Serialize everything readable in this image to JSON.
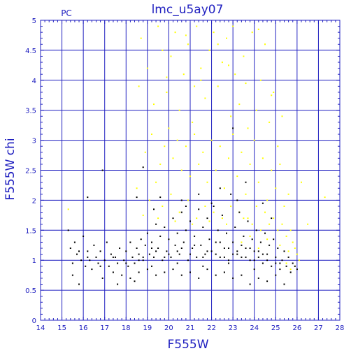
{
  "chart_data": {
    "type": "scatter",
    "title": "lmc_u5ay07",
    "corner_label": "PC",
    "xlabel": "F555W",
    "ylabel": "F555W chi",
    "xlim": [
      14,
      28
    ],
    "ylim": [
      0,
      5
    ],
    "x_ticks": [
      14,
      15,
      16,
      17,
      18,
      19,
      20,
      21,
      22,
      23,
      24,
      25,
      26,
      27,
      28
    ],
    "y_ticks": [
      0,
      0.5,
      1,
      1.5,
      2,
      2.5,
      3,
      3.5,
      4,
      4.5,
      5
    ],
    "grid": true,
    "colors": {
      "axis": "#2020c0",
      "grid": "#2020c0",
      "black_series": "#000000",
      "yellow_series": "#ffff00"
    },
    "series": [
      {
        "color": "#ffff00",
        "points": [
          [
            15.3,
            1.85
          ],
          [
            18.6,
            3.9
          ],
          [
            18.7,
            4.7
          ],
          [
            19.0,
            4.2
          ],
          [
            19.3,
            3.6
          ],
          [
            19.5,
            4.9
          ],
          [
            19.7,
            4.5
          ],
          [
            19.9,
            3.8
          ],
          [
            20.1,
            4.4
          ],
          [
            20.3,
            4.8
          ],
          [
            20.5,
            3.5
          ],
          [
            20.7,
            4.1
          ],
          [
            20.9,
            4.6
          ],
          [
            21.1,
            3.3
          ],
          [
            21.3,
            4.9
          ],
          [
            21.5,
            4.0
          ],
          [
            21.7,
            3.7
          ],
          [
            21.9,
            4.5
          ],
          [
            22.1,
            4.8
          ],
          [
            22.3,
            3.9
          ],
          [
            22.5,
            4.3
          ],
          [
            22.7,
            4.7
          ],
          [
            22.9,
            3.4
          ],
          [
            23.1,
            4.1
          ],
          [
            23.3,
            3.6
          ],
          [
            23.5,
            4.4
          ],
          [
            23.7,
            3.2
          ],
          [
            23.9,
            4.8
          ],
          [
            24.1,
            3.5
          ],
          [
            24.3,
            4.0
          ],
          [
            24.5,
            4.6
          ],
          [
            24.7,
            3.3
          ],
          [
            24.9,
            3.8
          ],
          [
            25.1,
            2.9
          ],
          [
            25.3,
            3.4
          ],
          [
            18.9,
            2.8
          ],
          [
            19.2,
            3.1
          ],
          [
            19.6,
            2.6
          ],
          [
            19.8,
            2.9
          ],
          [
            20.0,
            3.2
          ],
          [
            20.2,
            2.7
          ],
          [
            20.4,
            3.0
          ],
          [
            20.6,
            2.5
          ],
          [
            20.8,
            2.9
          ],
          [
            21.0,
            2.4
          ],
          [
            21.2,
            3.1
          ],
          [
            21.4,
            2.6
          ],
          [
            21.6,
            2.8
          ],
          [
            21.8,
            2.3
          ],
          [
            22.0,
            3.0
          ],
          [
            22.2,
            2.5
          ],
          [
            22.4,
            2.9
          ],
          [
            22.6,
            2.2
          ],
          [
            22.8,
            2.7
          ],
          [
            23.0,
            3.1
          ],
          [
            23.2,
            2.4
          ],
          [
            23.4,
            2.8
          ],
          [
            23.6,
            2.1
          ],
          [
            23.8,
            2.6
          ],
          [
            24.0,
            3.0
          ],
          [
            24.2,
            2.3
          ],
          [
            24.4,
            2.7
          ],
          [
            24.6,
            2.0
          ],
          [
            24.8,
            2.5
          ],
          [
            25.0,
            2.2
          ],
          [
            25.2,
            2.6
          ],
          [
            25.4,
            1.9
          ],
          [
            25.6,
            2.1
          ],
          [
            26.2,
            2.3
          ],
          [
            27.3,
            2.05
          ],
          [
            18.5,
            2.2
          ],
          [
            19.1,
            2.0
          ],
          [
            19.4,
            2.3
          ],
          [
            19.7,
            1.9
          ],
          [
            20.1,
            2.1
          ],
          [
            20.5,
            1.8
          ],
          [
            20.9,
            2.0
          ],
          [
            21.3,
            1.7
          ],
          [
            21.7,
            1.9
          ],
          [
            22.1,
            1.8
          ],
          [
            22.5,
            1.7
          ],
          [
            22.9,
            1.9
          ],
          [
            23.3,
            1.8
          ],
          [
            23.7,
            1.7
          ],
          [
            24.1,
            1.9
          ],
          [
            24.5,
            1.8
          ],
          [
            24.9,
            1.7
          ],
          [
            25.3,
            1.6
          ],
          [
            25.7,
            1.5
          ],
          [
            25.9,
            1.2
          ],
          [
            26.5,
            1.6
          ],
          [
            25.5,
            1.4
          ],
          [
            25.1,
            1.5
          ],
          [
            24.7,
            1.6
          ],
          [
            24.3,
            1.5
          ],
          [
            23.9,
            1.6
          ],
          [
            23.5,
            1.7
          ],
          [
            22.7,
            1.6
          ],
          [
            21.9,
            1.65
          ],
          [
            21.1,
            1.6
          ],
          [
            20.3,
            1.65
          ],
          [
            19.5,
            1.7
          ],
          [
            18.8,
            1.75
          ],
          [
            25.8,
            1.3
          ],
          [
            26.0,
            1.1
          ],
          [
            25.6,
            1.15
          ],
          [
            25.2,
            1.25
          ],
          [
            24.6,
            1.35
          ],
          [
            24.2,
            1.2
          ],
          [
            23.8,
            1.4
          ],
          [
            23.4,
            1.3
          ],
          [
            26.1,
            1.0
          ],
          [
            25.9,
            0.9
          ],
          [
            25.7,
            0.85
          ],
          [
            25.5,
            0.95
          ],
          [
            21.5,
            4.2
          ],
          [
            22.3,
            4.6
          ],
          [
            23.0,
            4.9
          ],
          [
            24.2,
            4.85
          ],
          [
            20.8,
            4.75
          ],
          [
            22.8,
            4.25
          ],
          [
            19.9,
            4.05
          ],
          [
            21.2,
            3.9
          ],
          [
            23.6,
            3.95
          ],
          [
            24.8,
            3.75
          ]
        ]
      },
      {
        "color": "#000000",
        "points": [
          [
            15.3,
            1.5
          ],
          [
            15.4,
            1.2
          ],
          [
            15.5,
            0.95
          ],
          [
            15.5,
            0.75
          ],
          [
            15.6,
            1.3
          ],
          [
            15.7,
            1.1
          ],
          [
            15.8,
            0.6
          ],
          [
            15.9,
            1.0
          ],
          [
            16.0,
            1.4
          ],
          [
            16.1,
            0.9
          ],
          [
            16.2,
            2.05
          ],
          [
            16.2,
            1.15
          ],
          [
            16.3,
            1.0
          ],
          [
            16.4,
            0.85
          ],
          [
            16.5,
            1.25
          ],
          [
            16.6,
            1.05
          ],
          [
            16.7,
            0.95
          ],
          [
            16.8,
            1.15
          ],
          [
            16.9,
            2.5
          ],
          [
            16.9,
            0.7
          ],
          [
            17.0,
            1.0
          ],
          [
            17.1,
            1.3
          ],
          [
            17.2,
            0.9
          ],
          [
            17.3,
            1.1
          ],
          [
            17.4,
            0.8
          ],
          [
            17.5,
            1.05
          ],
          [
            17.6,
            0.95
          ],
          [
            17.7,
            1.2
          ],
          [
            17.8,
            0.75
          ],
          [
            17.9,
            1.0
          ],
          [
            18.0,
            1.15
          ],
          [
            18.1,
            0.9
          ],
          [
            18.2,
            1.3
          ],
          [
            18.3,
            1.05
          ],
          [
            18.4,
            0.95
          ],
          [
            18.5,
            1.2
          ],
          [
            18.5,
            2.05
          ],
          [
            18.6,
            1.1
          ],
          [
            18.7,
            1.35
          ],
          [
            18.8,
            2.55
          ],
          [
            18.8,
            1.0
          ],
          [
            18.9,
            1.25
          ],
          [
            19.0,
            1.45
          ],
          [
            19.1,
            1.1
          ],
          [
            19.2,
            1.3
          ],
          [
            19.3,
            1.05
          ],
          [
            19.4,
            1.6
          ],
          [
            19.5,
            1.2
          ],
          [
            19.6,
            1.4
          ],
          [
            19.7,
            1.0
          ],
          [
            19.8,
            1.55
          ],
          [
            19.9,
            1.15
          ],
          [
            20.0,
            1.35
          ],
          [
            20.1,
            1.05
          ],
          [
            20.2,
            1.7
          ],
          [
            20.3,
            1.25
          ],
          [
            20.4,
            1.45
          ],
          [
            20.5,
            1.1
          ],
          [
            20.6,
            1.8
          ],
          [
            20.7,
            1.3
          ],
          [
            20.8,
            1.5
          ],
          [
            20.9,
            1.0
          ],
          [
            21.0,
            1.65
          ],
          [
            21.1,
            1.2
          ],
          [
            21.2,
            1.4
          ],
          [
            21.3,
            1.05
          ],
          [
            21.4,
            1.85
          ],
          [
            21.5,
            1.25
          ],
          [
            21.6,
            1.55
          ],
          [
            21.7,
            1.1
          ],
          [
            21.8,
            1.7
          ],
          [
            21.9,
            1.35
          ],
          [
            22.0,
            1.15
          ],
          [
            22.1,
            1.9
          ],
          [
            22.2,
            1.3
          ],
          [
            22.3,
            1.5
          ],
          [
            22.4,
            1.05
          ],
          [
            22.5,
            1.75
          ],
          [
            22.6,
            1.2
          ],
          [
            22.7,
            1.45
          ],
          [
            22.8,
            1.0
          ],
          [
            22.9,
            2.1
          ],
          [
            23.0,
            1.3
          ],
          [
            23.0,
            3.2
          ],
          [
            23.1,
            1.55
          ],
          [
            23.2,
            1.1
          ],
          [
            23.3,
            1.8
          ],
          [
            23.4,
            1.25
          ],
          [
            23.5,
            1.4
          ],
          [
            23.6,
            1.05
          ],
          [
            23.7,
            1.65
          ],
          [
            23.8,
            1.2
          ],
          [
            23.9,
            1.35
          ],
          [
            24.0,
            1.0
          ],
          [
            24.1,
            1.5
          ],
          [
            24.2,
            1.15
          ],
          [
            24.3,
            1.3
          ],
          [
            24.4,
            0.95
          ],
          [
            24.5,
            1.45
          ],
          [
            24.6,
            1.1
          ],
          [
            24.7,
            1.25
          ],
          [
            24.8,
            0.9
          ],
          [
            24.9,
            1.35
          ],
          [
            25.0,
            1.05
          ],
          [
            25.1,
            1.2
          ],
          [
            25.2,
            0.85
          ],
          [
            25.3,
            1.0
          ],
          [
            25.4,
            1.15
          ],
          [
            25.5,
            0.9
          ],
          [
            25.6,
            1.05
          ],
          [
            25.7,
            0.8
          ],
          [
            25.8,
            0.95
          ],
          [
            25.9,
            0.9
          ],
          [
            26.0,
            0.85
          ],
          [
            18.2,
            0.7
          ],
          [
            18.6,
            0.8
          ],
          [
            19.0,
            0.85
          ],
          [
            19.4,
            0.75
          ],
          [
            19.8,
            0.8
          ],
          [
            20.2,
            0.85
          ],
          [
            20.6,
            0.75
          ],
          [
            21.0,
            0.8
          ],
          [
            21.4,
            0.7
          ],
          [
            21.8,
            0.85
          ],
          [
            22.2,
            0.75
          ],
          [
            22.6,
            0.8
          ],
          [
            23.0,
            0.7
          ],
          [
            23.4,
            0.75
          ],
          [
            23.8,
            0.6
          ],
          [
            24.2,
            0.7
          ],
          [
            24.6,
            0.65
          ],
          [
            25.0,
            0.75
          ],
          [
            25.4,
            0.6
          ],
          [
            17.6,
            0.6
          ],
          [
            18.4,
            0.65
          ],
          [
            19.2,
            0.9
          ],
          [
            20.4,
            0.95
          ],
          [
            21.6,
            0.9
          ],
          [
            22.8,
            0.95
          ],
          [
            24.0,
            0.85
          ],
          [
            25.2,
            0.95
          ],
          [
            19.6,
            2.05
          ],
          [
            20.6,
            2.0
          ],
          [
            21.4,
            2.1
          ],
          [
            22.4,
            2.2
          ],
          [
            23.6,
            2.3
          ],
          [
            24.4,
            1.95
          ],
          [
            19.3,
            1.85
          ],
          [
            20.8,
            1.9
          ],
          [
            22.0,
            1.95
          ],
          [
            23.2,
            2.0
          ],
          [
            24.8,
            1.7
          ],
          [
            21.2,
            1.25
          ],
          [
            21.8,
            1.15
          ],
          [
            22.4,
            1.3
          ],
          [
            23.0,
            1.1
          ],
          [
            23.6,
            1.2
          ],
          [
            24.2,
            1.05
          ],
          [
            20.0,
            1.1
          ],
          [
            20.6,
            1.2
          ],
          [
            19.4,
            1.15
          ],
          [
            18.8,
            1.05
          ],
          [
            22.6,
            1.05
          ],
          [
            23.2,
            1.15
          ],
          [
            23.8,
            1.0
          ],
          [
            24.4,
            1.1
          ],
          [
            25.0,
            0.95
          ],
          [
            21.0,
            1.1
          ],
          [
            21.6,
            1.05
          ],
          [
            22.2,
            1.1
          ],
          [
            22.8,
            1.2
          ],
          [
            23.4,
            1.05
          ],
          [
            24.0,
            1.15
          ],
          [
            24.6,
            1.0
          ],
          [
            20.4,
            1.15
          ],
          [
            19.8,
            1.05
          ],
          [
            19.2,
            1.2
          ],
          [
            18.6,
            1.0
          ],
          [
            18.0,
            0.95
          ],
          [
            17.4,
            1.05
          ],
          [
            16.8,
            0.9
          ],
          [
            16.2,
            1.05
          ],
          [
            15.8,
            1.15
          ]
        ]
      }
    ]
  }
}
